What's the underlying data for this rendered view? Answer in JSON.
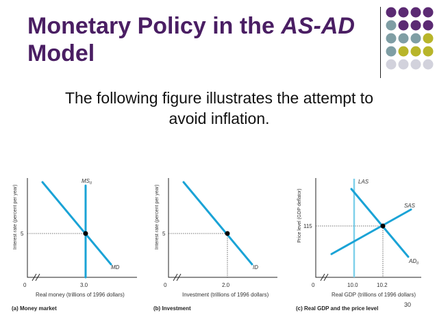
{
  "slide": {
    "title_part1": "Monetary Policy in the ",
    "title_italic": "AS-AD",
    "title_part2": "Model",
    "subtitle_line1": "The following figure illustrates the attempt to",
    "subtitle_line2": "avoid inflation.",
    "slide_number": "30"
  },
  "decoration": {
    "dot_colors": [
      "#5b2a73",
      "#7f9ea4",
      "#b8b52a",
      "#d2d2dc"
    ]
  },
  "colors": {
    "title": "#4a1e63",
    "curve": "#1aa3d6",
    "las": "#7fd0ea"
  },
  "panels": {
    "a": {
      "caption": "(a) Money market",
      "ylabel": "Interest rate (percent per year)",
      "xlabel": "Real money (trillions of 1996 dollars)",
      "origin_label": "0",
      "ytick": "5",
      "xtick": "3.0",
      "ms_label": "MS",
      "ms_sub": "0",
      "md_label": "MD"
    },
    "b": {
      "caption": "(b) Investment",
      "ylabel": "Interest rate (percent per year)",
      "xlabel": "Investment (trillions of 1996 dollars)",
      "origin_label": "0",
      "ytick": "5",
      "xtick": "2.0",
      "id_label": "ID"
    },
    "c": {
      "caption": "(c) Real GDP and the price level",
      "ylabel": "Price level (GDP deflator)",
      "xlabel": "Real GDP (trillions of 1996 dollars)",
      "origin_label": "0",
      "ytick": "115",
      "xtick1": "10.0",
      "xtick2": "10.2",
      "las_label": "LAS",
      "sas_label": "SAS",
      "ad_label": "AD",
      "ad_sub": "0"
    }
  }
}
